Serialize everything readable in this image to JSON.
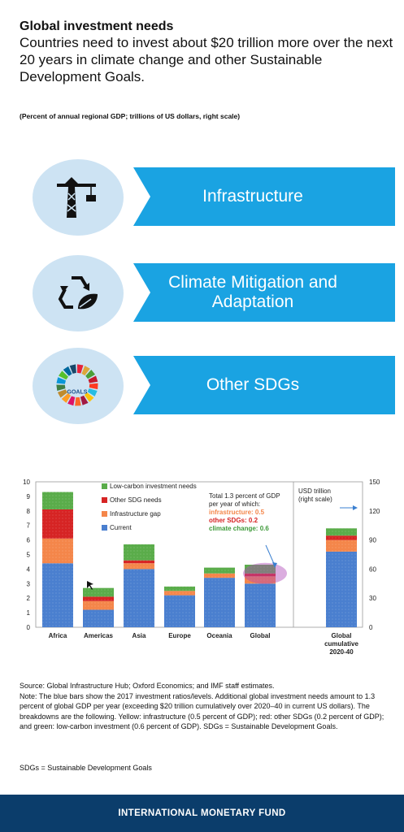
{
  "header": {
    "title": "Global investment needs",
    "subtitle": "Countries need to invest about $20 trillion more over the next 20 years in climate change and other Sustainable Development Goals.",
    "scale_note": "(Percent of annual regional GDP; trillions of US dollars, right scale)"
  },
  "categories_graphic": [
    {
      "label": "Infrastructure",
      "icon": "crane-icon"
    },
    {
      "label": "Climate Mitigation and Adaptation",
      "icon": "recycle-leaf-icon"
    },
    {
      "label": "Other SDGs",
      "icon": "sdg-wheel-icon",
      "icon_text": "GOALS"
    }
  ],
  "chart_data": {
    "type": "bar",
    "stacked": true,
    "categories": [
      "Africa",
      "Americas",
      "Asia",
      "Europe",
      "Oceania",
      "Global",
      "Global cumulative 2020-40"
    ],
    "series": [
      {
        "name": "Current",
        "color": "#4a7fcf",
        "values": [
          4.4,
          1.2,
          4.0,
          2.2,
          3.4,
          3.0,
          5.2
        ]
      },
      {
        "name": "Infrastructure gap",
        "color": "#f4864a",
        "values": [
          1.7,
          0.6,
          0.4,
          0.3,
          0.3,
          0.5,
          0.8
        ]
      },
      {
        "name": "Other SDG needs",
        "color": "#d62424",
        "values": [
          2.0,
          0.3,
          0.2,
          0.0,
          0.0,
          0.2,
          0.3
        ]
      },
      {
        "name": "Low-carbon investment needs",
        "color": "#5aac4a",
        "values": [
          1.2,
          0.6,
          1.1,
          0.3,
          0.4,
          0.6,
          0.5
        ]
      }
    ],
    "left_axis": {
      "min": 0,
      "max": 10,
      "ticks": [
        0,
        1,
        2,
        3,
        4,
        5,
        6,
        7,
        8,
        9,
        10
      ]
    },
    "right_axis": {
      "min": 0,
      "max": 150,
      "ticks": [
        0,
        30,
        60,
        90,
        120,
        150
      ],
      "label": "USD trillion (right scale)"
    },
    "x_tick_labels": [
      "Africa",
      "Americas",
      "Asia",
      "Europe",
      "Oceania",
      "Global",
      "Global cumulative 2020-40"
    ],
    "legend_position": "top-left",
    "grid": false,
    "annotation": {
      "lines": [
        {
          "text": "Total 1.3 percent of GDP",
          "color": "#222222"
        },
        {
          "text": "per year of which:",
          "color": "#222222"
        },
        {
          "text": "infrastructure: 0.5",
          "color": "#f4864a"
        },
        {
          "text": "other SDGs: 0.2",
          "color": "#d62424"
        },
        {
          "text": "climate change: 0.6",
          "color": "#3e9a3a"
        }
      ]
    },
    "right_scale_note": [
      "USD trillion",
      "(right scale)"
    ]
  },
  "source": {
    "source_line": "Source: Global Infrastructure Hub; Oxford Economics; and IMF staff estimates.",
    "note": "Note: The blue bars show the 2017 investment ratios/levels. Additional global investment needs amount to 1.3 percent of global GDP per year (exceeding $20 trillion cumulatively over 2020–40 in current US dollars). The breakdowns are the following. Yellow: infrastructure (0.5 percent of GDP); red: other SDGs (0.2 percent of GDP); and green: low-carbon investment (0.6 percent of GDP). SDGs = Sustainable Development Goals.",
    "abbreviation": "SDGs = Sustainable Development Goals"
  },
  "footer": {
    "label": "INTERNATIONAL MONETARY FUND"
  }
}
